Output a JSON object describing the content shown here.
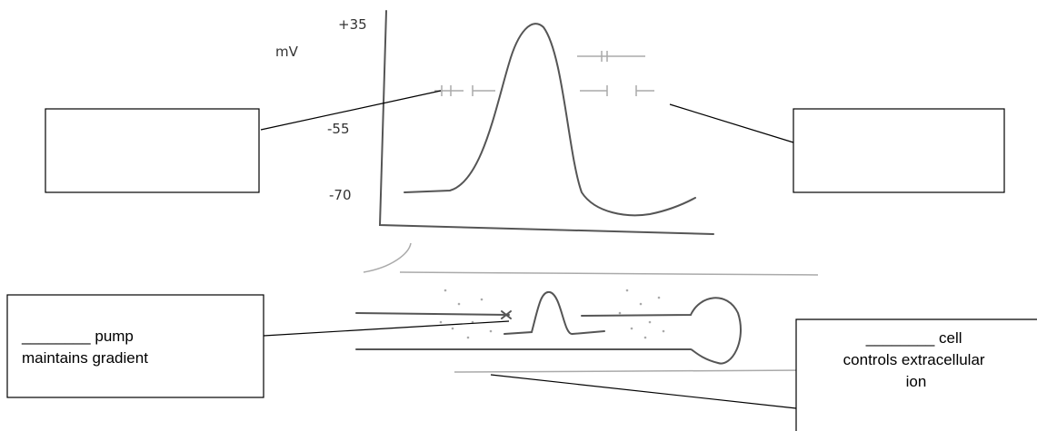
{
  "graph": {
    "unit": "mV",
    "labels": [
      "+35",
      "-55",
      "-70"
    ]
  },
  "boxes": [
    {
      "lines": []
    },
    {
      "lines": []
    },
    {
      "lines": [
        "________ pump",
        "maintains gradient"
      ]
    },
    {
      "lines": [
        "________ cell",
        "controls extracellular",
        "ion"
      ]
    }
  ]
}
